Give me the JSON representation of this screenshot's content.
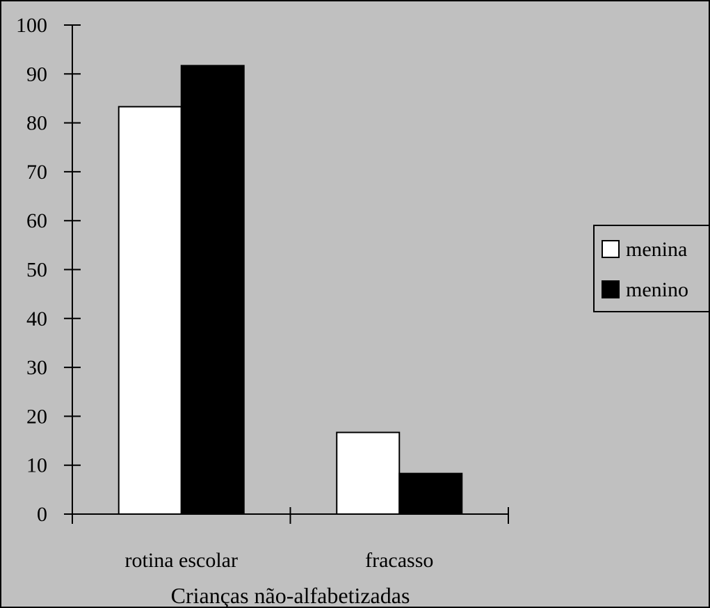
{
  "chart_data": {
    "type": "bar",
    "categories": [
      "rotina escolar",
      "fracasso"
    ],
    "series": [
      {
        "name": "menina",
        "values": [
          83.3,
          16.7
        ],
        "color": "#ffffff"
      },
      {
        "name": "menino",
        "values": [
          91.7,
          8.3
        ],
        "color": "#000000"
      }
    ],
    "xlabel": "Crianças não-alfabetizadas",
    "ylabel": "",
    "ylim": [
      0,
      100
    ],
    "yticks": [
      0,
      10,
      20,
      30,
      40,
      50,
      60,
      70,
      80,
      90,
      100
    ],
    "grid": false,
    "legend_position": "right",
    "background_color": "#c0c0c0"
  }
}
